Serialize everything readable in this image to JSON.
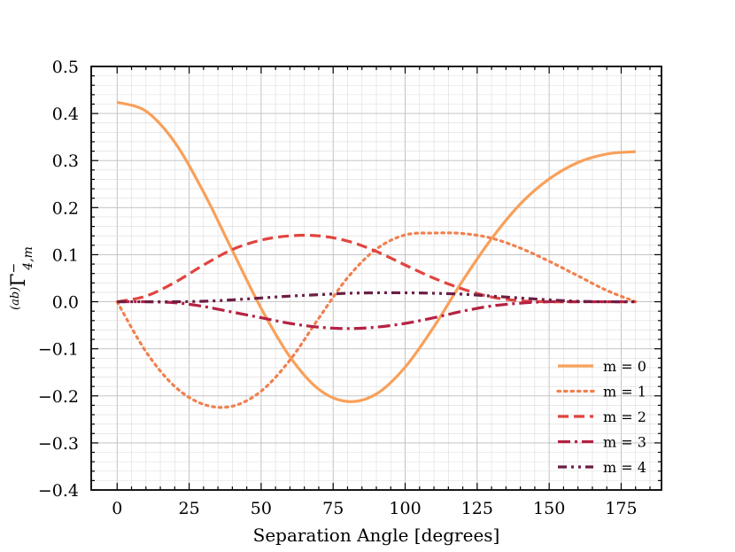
{
  "chart_data": {
    "type": "line",
    "title": "",
    "xlabel": "Separation Angle [degrees]",
    "ylabel": {
      "prefix": "(ab)",
      "symbol": "Γ",
      "superscript": "−",
      "subscript": "4,m"
    },
    "xlim": [
      -9,
      189
    ],
    "ylim": [
      -0.4,
      0.5
    ],
    "x_ticks": [
      0,
      25,
      50,
      75,
      100,
      125,
      150,
      175
    ],
    "x_tick_labels": [
      "0",
      "25",
      "50",
      "75",
      "100",
      "125",
      "150",
      "175"
    ],
    "y_ticks": [
      -0.4,
      -0.3,
      -0.2,
      -0.1,
      0.0,
      0.1,
      0.2,
      0.3,
      0.4,
      0.5
    ],
    "y_tick_labels": [
      "−0.4",
      "−0.3",
      "−0.2",
      "−0.1",
      "0.0",
      "0.1",
      "0.2",
      "0.3",
      "0.4",
      "0.5"
    ],
    "grid": true,
    "legend_position": "lower-right",
    "x": [
      0,
      10,
      20,
      30,
      40,
      50,
      60,
      70,
      80,
      90,
      100,
      110,
      120,
      130,
      140,
      150,
      160,
      170,
      180
    ],
    "series": [
      {
        "name": "m = 0",
        "color": "#F9A05A",
        "style": "solid",
        "values": [
          0.424,
          0.405,
          0.339,
          0.233,
          0.109,
          -0.014,
          -0.117,
          -0.186,
          -0.212,
          -0.196,
          -0.139,
          -0.053,
          0.045,
          0.134,
          0.208,
          0.261,
          0.296,
          0.314,
          0.319
        ]
      },
      {
        "name": "m = 1",
        "color": "#F08050",
        "style": "dotted",
        "values": [
          0.0,
          -0.106,
          -0.18,
          -0.218,
          -0.222,
          -0.19,
          -0.124,
          -0.035,
          0.051,
          0.112,
          0.142,
          0.146,
          0.145,
          0.135,
          0.114,
          0.086,
          0.055,
          0.024,
          0.0
        ]
      },
      {
        "name": "m = 2",
        "color": "#E1443F",
        "style": "dashed",
        "values": [
          0.0,
          0.012,
          0.041,
          0.078,
          0.111,
          0.131,
          0.14,
          0.14,
          0.129,
          0.107,
          0.078,
          0.05,
          0.027,
          0.01,
          0.002,
          0.0,
          0.0,
          0.0,
          0.0
        ]
      },
      {
        "name": "m = 3",
        "color": "#B52244",
        "style": "dashdot",
        "values": [
          0.0,
          0.0,
          -0.002,
          -0.01,
          -0.022,
          -0.034,
          -0.046,
          -0.054,
          -0.057,
          -0.054,
          -0.046,
          -0.034,
          -0.02,
          -0.009,
          -0.003,
          0.0,
          0.0,
          0.0,
          0.0
        ]
      },
      {
        "name": "m = 4",
        "color": "#6B1E45",
        "style": "dashdotdot",
        "values": [
          0.0,
          0.0,
          0.0,
          0.001,
          0.004,
          0.008,
          0.012,
          0.015,
          0.018,
          0.019,
          0.019,
          0.018,
          0.016,
          0.012,
          0.008,
          0.004,
          0.001,
          0.0,
          0.0
        ]
      }
    ]
  }
}
